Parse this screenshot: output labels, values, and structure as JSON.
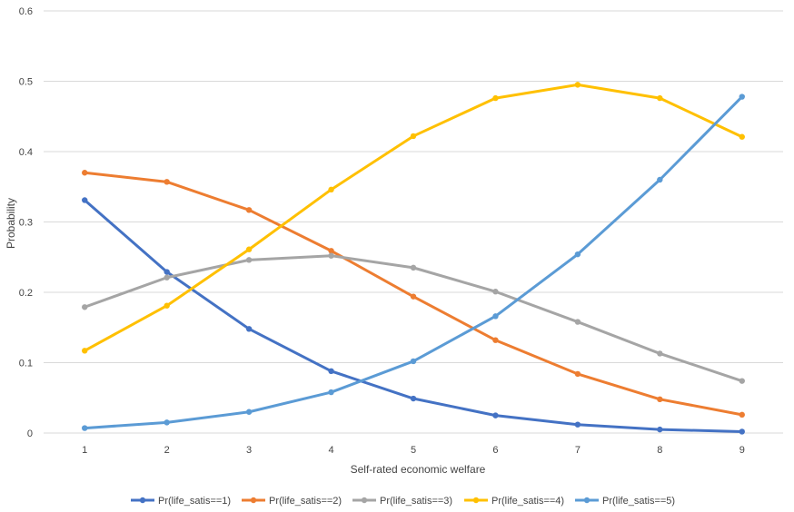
{
  "chart_data": {
    "type": "line",
    "title": "",
    "xlabel": "Self-rated economic welfare",
    "ylabel": "Probability",
    "x": [
      1,
      2,
      3,
      4,
      5,
      6,
      7,
      8,
      9
    ],
    "xlim": [
      0.5,
      9.5
    ],
    "ylim": [
      0,
      0.6
    ],
    "yticks": [
      "0",
      "0.1",
      "0.2",
      "0.3",
      "0.4",
      "0.5",
      "0.6"
    ],
    "xticks": [
      "1",
      "2",
      "3",
      "4",
      "5",
      "6",
      "7",
      "8",
      "9"
    ],
    "grid": true,
    "legend_position": "bottom",
    "series": [
      {
        "name": "Pr(life_satis==1)",
        "color": "#4472C4",
        "values": [
          0.331,
          0.229,
          0.148,
          0.088,
          0.049,
          0.025,
          0.012,
          0.005,
          0.002
        ]
      },
      {
        "name": "Pr(life_satis==2)",
        "color": "#ED7D31",
        "values": [
          0.37,
          0.357,
          0.317,
          0.259,
          0.194,
          0.132,
          0.084,
          0.048,
          0.026
        ]
      },
      {
        "name": "Pr(life_satis==3)",
        "color": "#A5A5A5",
        "values": [
          0.179,
          0.221,
          0.246,
          0.252,
          0.235,
          0.201,
          0.158,
          0.113,
          0.074
        ]
      },
      {
        "name": "Pr(life_satis==4)",
        "color": "#FFC000",
        "values": [
          0.117,
          0.181,
          0.261,
          0.346,
          0.422,
          0.476,
          0.495,
          0.476,
          0.421
        ]
      },
      {
        "name": "Pr(life_satis==5)",
        "color": "#5B9BD5",
        "values": [
          0.007,
          0.015,
          0.03,
          0.058,
          0.102,
          0.166,
          0.254,
          0.36,
          0.478
        ]
      }
    ]
  }
}
